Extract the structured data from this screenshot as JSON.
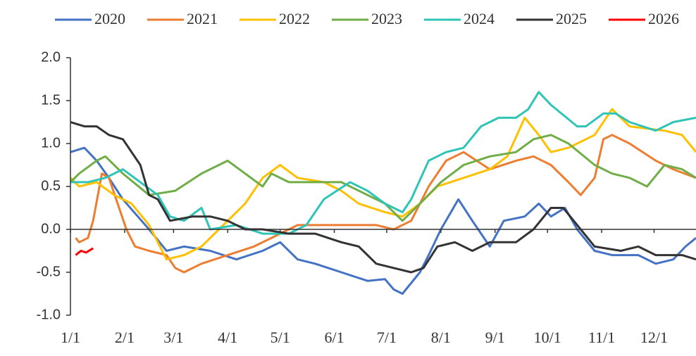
{
  "chart_data": {
    "type": "line",
    "xlim": [
      0,
      358
    ],
    "xticks": [
      {
        "value": 0,
        "label": "1/1"
      },
      {
        "value": 31,
        "label": "2/1"
      },
      {
        "value": 59,
        "label": "3/1"
      },
      {
        "value": 90,
        "label": "4/1"
      },
      {
        "value": 120,
        "label": "5/1"
      },
      {
        "value": 151,
        "label": "6/1"
      },
      {
        "value": 181,
        "label": "7/1"
      },
      {
        "value": 212,
        "label": "8/1"
      },
      {
        "value": 243,
        "label": "9/1"
      },
      {
        "value": 273,
        "label": "10/1"
      },
      {
        "value": 304,
        "label": "11/1"
      },
      {
        "value": 334,
        "label": "12/1"
      }
    ],
    "ylim": [
      -1.0,
      2.0
    ],
    "yticks": [
      {
        "value": -1.0,
        "label": "-1.0"
      },
      {
        "value": -0.5,
        "label": "-0.5"
      },
      {
        "value": 0.0,
        "label": "0.0"
      },
      {
        "value": 0.5,
        "label": "0.5"
      },
      {
        "value": 1.0,
        "label": "1.0"
      },
      {
        "value": 1.5,
        "label": "1.5"
      },
      {
        "value": 2.0,
        "label": "2.0"
      }
    ],
    "legend": "top",
    "series": [
      {
        "name": "2020",
        "color": "#4472c4",
        "x": [
          0,
          8,
          15,
          22,
          30,
          45,
          55,
          65,
          80,
          95,
          110,
          120,
          130,
          140,
          155,
          170,
          180,
          185,
          190,
          200,
          205,
          212,
          222,
          230,
          240,
          248,
          260,
          268,
          275,
          283,
          290,
          300,
          310,
          325,
          335,
          345,
          352,
          358
        ],
        "values": [
          0.9,
          0.95,
          0.8,
          0.6,
          0.35,
          0.0,
          -0.25,
          -0.2,
          -0.25,
          -0.35,
          -0.25,
          -0.15,
          -0.35,
          -0.4,
          -0.5,
          -0.6,
          -0.58,
          -0.7,
          -0.75,
          -0.5,
          -0.3,
          0.0,
          0.35,
          0.1,
          -0.2,
          0.1,
          0.15,
          0.3,
          0.15,
          0.25,
          0.0,
          -0.25,
          -0.3,
          -0.3,
          -0.4,
          -0.35,
          -0.2,
          -0.1
        ]
      },
      {
        "name": "2021",
        "color": "#ed7d31",
        "x": [
          3,
          5,
          10,
          13,
          18,
          22,
          27,
          32,
          37,
          45,
          55,
          60,
          65,
          75,
          90,
          105,
          120,
          130,
          145,
          160,
          175,
          185,
          195,
          205,
          215,
          225,
          240,
          255,
          265,
          275,
          285,
          292,
          300,
          305,
          310,
          320,
          335,
          345,
          358
        ],
        "values": [
          -0.1,
          -0.15,
          -0.1,
          0.1,
          0.65,
          0.6,
          0.3,
          0.0,
          -0.2,
          -0.25,
          -0.3,
          -0.45,
          -0.5,
          -0.4,
          -0.3,
          -0.2,
          -0.05,
          0.05,
          0.05,
          0.05,
          0.05,
          0.0,
          0.1,
          0.5,
          0.8,
          0.9,
          0.7,
          0.8,
          0.85,
          0.75,
          0.55,
          0.4,
          0.6,
          1.05,
          1.1,
          1.0,
          0.8,
          0.7,
          0.6
        ]
      },
      {
        "name": "2022",
        "color": "#ffc000",
        "x": [
          0,
          5,
          15,
          25,
          35,
          45,
          55,
          65,
          75,
          85,
          100,
          110,
          120,
          130,
          145,
          155,
          165,
          180,
          190,
          200,
          210,
          225,
          240,
          250,
          260,
          268,
          275,
          285,
          300,
          310,
          320,
          340,
          350,
          358
        ],
        "values": [
          0.6,
          0.5,
          0.55,
          0.4,
          0.3,
          0.05,
          -0.35,
          -0.3,
          -0.2,
          0.0,
          0.3,
          0.6,
          0.75,
          0.6,
          0.55,
          0.45,
          0.3,
          0.2,
          0.15,
          0.3,
          0.5,
          0.6,
          0.7,
          0.85,
          1.3,
          1.1,
          0.9,
          0.95,
          1.1,
          1.4,
          1.2,
          1.15,
          1.1,
          0.9
        ]
      },
      {
        "name": "2023",
        "color": "#70ad47",
        "x": [
          0,
          5,
          15,
          20,
          30,
          45,
          60,
          75,
          90,
          100,
          110,
          115,
          125,
          140,
          155,
          170,
          180,
          190,
          200,
          212,
          225,
          240,
          255,
          265,
          275,
          285,
          300,
          310,
          320,
          330,
          340,
          350,
          358
        ],
        "values": [
          0.55,
          0.65,
          0.8,
          0.85,
          0.65,
          0.4,
          0.45,
          0.65,
          0.8,
          0.65,
          0.5,
          0.65,
          0.55,
          0.55,
          0.55,
          0.4,
          0.3,
          0.1,
          0.3,
          0.55,
          0.75,
          0.85,
          0.9,
          1.05,
          1.1,
          1.0,
          0.75,
          0.65,
          0.6,
          0.5,
          0.75,
          0.7,
          0.6
        ]
      },
      {
        "name": "2024",
        "color": "#2ec4b6",
        "x": [
          0,
          10,
          20,
          30,
          40,
          50,
          57,
          65,
          75,
          80,
          95,
          110,
          125,
          135,
          145,
          160,
          170,
          180,
          190,
          195,
          205,
          215,
          225,
          235,
          245,
          255,
          262,
          268,
          275,
          290,
          295,
          305,
          312,
          320,
          335,
          345,
          358
        ],
        "values": [
          0.55,
          0.55,
          0.6,
          0.7,
          0.55,
          0.4,
          0.15,
          0.1,
          0.25,
          0.0,
          0.05,
          -0.05,
          -0.05,
          0.05,
          0.35,
          0.55,
          0.45,
          0.3,
          0.2,
          0.35,
          0.8,
          0.9,
          0.95,
          1.2,
          1.3,
          1.3,
          1.4,
          1.6,
          1.45,
          1.2,
          1.2,
          1.35,
          1.35,
          1.25,
          1.15,
          1.25,
          1.3
        ]
      },
      {
        "name": "2025",
        "color": "#333333",
        "x": [
          0,
          8,
          15,
          22,
          30,
          40,
          45,
          50,
          57,
          70,
          80,
          90,
          100,
          110,
          125,
          140,
          155,
          165,
          175,
          185,
          195,
          202,
          210,
          220,
          230,
          240,
          255,
          265,
          275,
          282,
          292,
          300,
          315,
          325,
          335,
          350,
          358
        ],
        "values": [
          1.25,
          1.2,
          1.2,
          1.1,
          1.05,
          0.75,
          0.4,
          0.35,
          0.1,
          0.15,
          0.15,
          0.1,
          0.0,
          0.0,
          -0.05,
          -0.05,
          -0.15,
          -0.2,
          -0.4,
          -0.45,
          -0.5,
          -0.45,
          -0.2,
          -0.15,
          -0.25,
          -0.15,
          -0.15,
          0.0,
          0.25,
          0.25,
          0.0,
          -0.2,
          -0.25,
          -0.2,
          -0.3,
          -0.3,
          -0.35
        ]
      },
      {
        "name": "2026",
        "color": "#ff0000",
        "x": [
          3,
          6,
          9,
          13
        ],
        "values": [
          -0.3,
          -0.25,
          -0.27,
          -0.22
        ]
      }
    ]
  }
}
